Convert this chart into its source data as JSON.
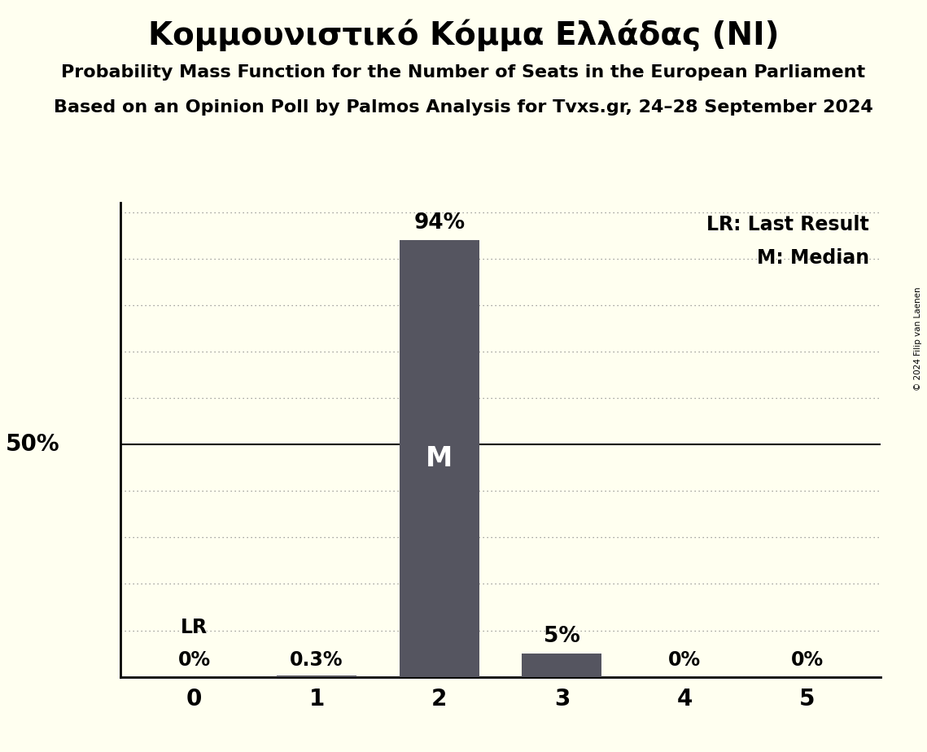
{
  "title": "Κομμουνιστικό Κόμμα Ελλάδας (NI)",
  "subtitle1": "Probability Mass Function for the Number of Seats in the European Parliament",
  "subtitle2": "Based on an Opinion Poll by Palmos Analysis for Tvxs.gr, 24–28 September 2024",
  "copyright": "© 2024 Filip van Laenen",
  "seats": [
    0,
    1,
    2,
    3,
    4,
    5
  ],
  "probabilities": [
    0.0,
    0.3,
    94.0,
    5.0,
    0.0,
    0.0
  ],
  "bar_color": "#555560",
  "background_color": "#fffff0",
  "median_seat": 2,
  "last_result_seat": 0,
  "ylabel_50": "50%",
  "legend_lr": "LR: Last Result",
  "legend_m": "M: Median",
  "bar_labels": [
    "0%",
    "0.3%",
    "94%",
    "5%",
    "0%",
    "0%"
  ],
  "title_fontsize": 28,
  "subtitle_fontsize": 16,
  "axis_fontsize": 20,
  "label_fontsize": 17,
  "dotted_line_color": "#888888"
}
